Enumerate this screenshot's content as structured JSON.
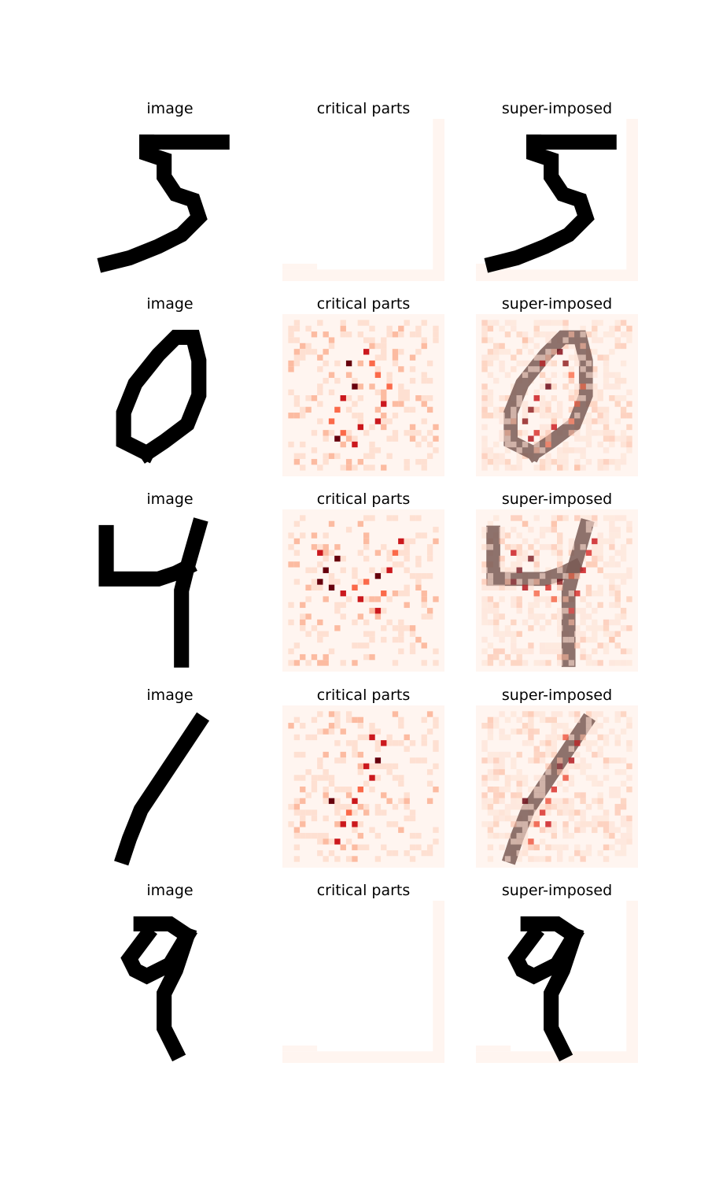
{
  "figure": {
    "column_titles": [
      "image",
      "critical parts",
      "super-imposed"
    ],
    "rows": [
      {
        "digit": "5",
        "critical_parts": "empty"
      },
      {
        "digit": "0",
        "critical_parts": "heatmap"
      },
      {
        "digit": "4",
        "critical_parts": "heatmap"
      },
      {
        "digit": "1",
        "critical_parts": "heatmap"
      },
      {
        "digit": "9",
        "critical_parts": "empty"
      }
    ],
    "colors": {
      "stroke": "#000000",
      "heat_low": "#fff5f0",
      "heat_mid": "#fb6a4a",
      "heat_high": "#67000d",
      "overlay_stroke": "#7a5a55"
    }
  }
}
